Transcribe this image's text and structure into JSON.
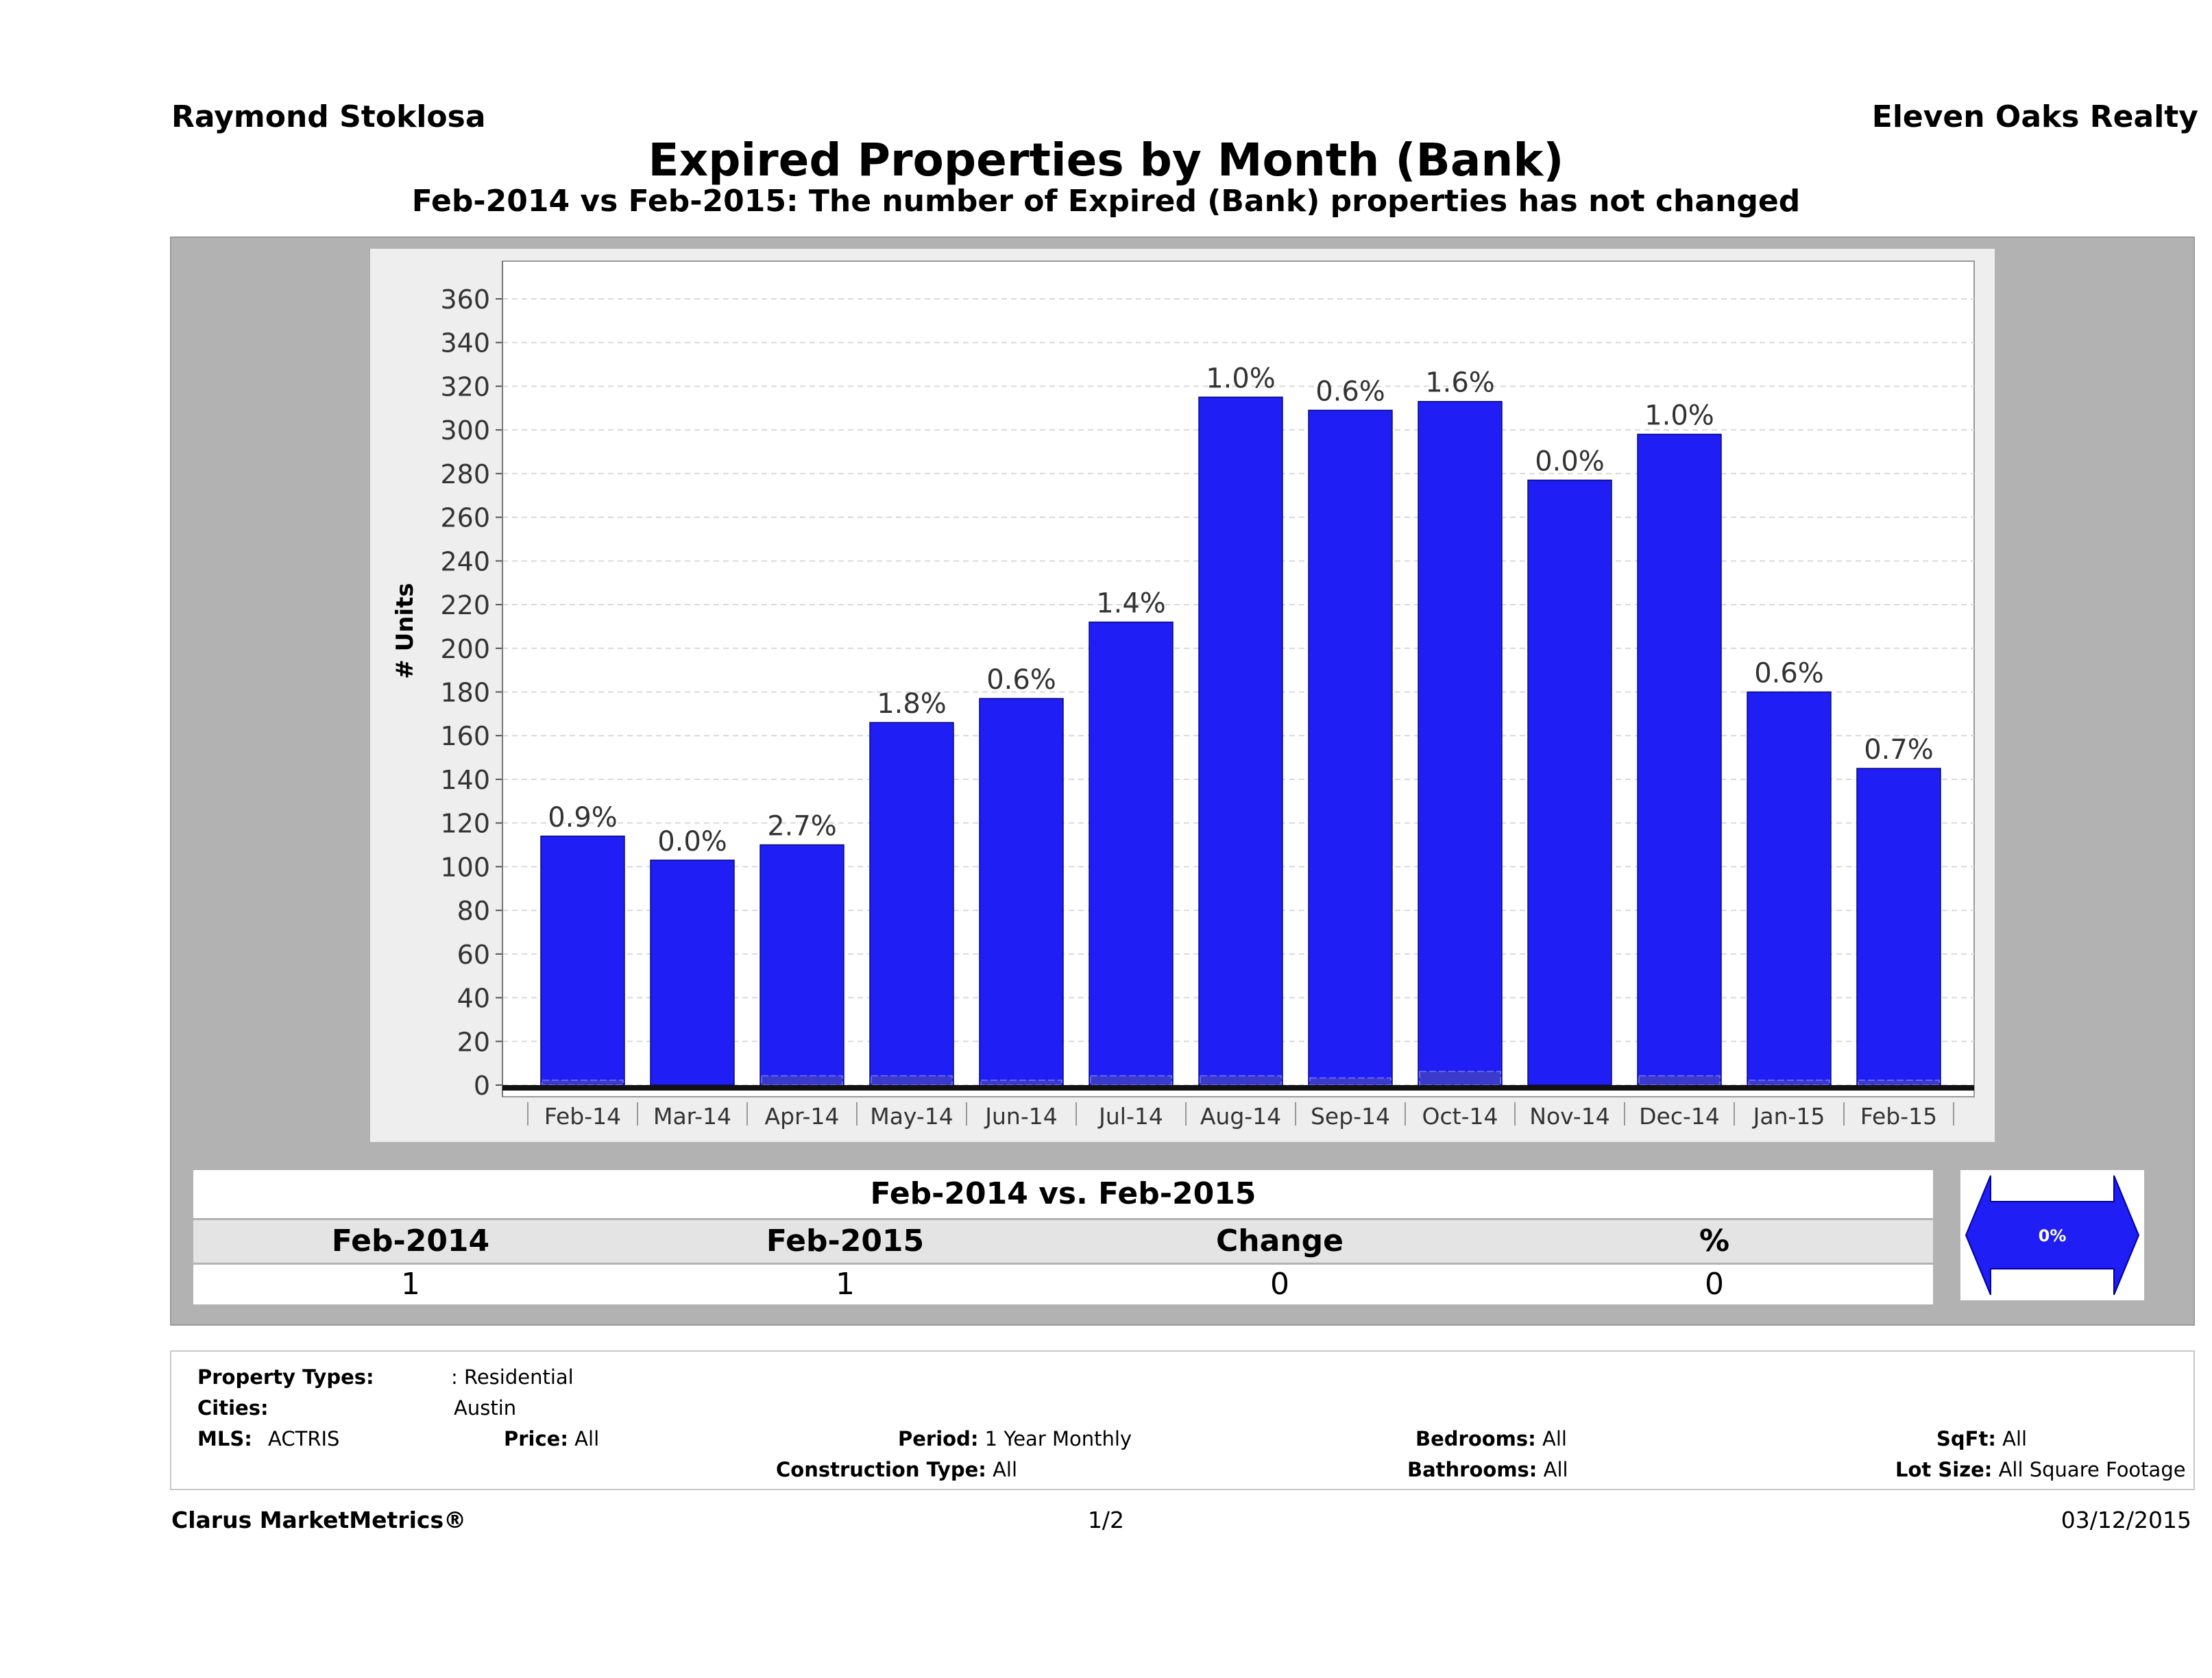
{
  "header": {
    "agent": "Raymond Stoklosa",
    "brokerage": "Eleven Oaks Realty",
    "title": "Expired Properties by Month (Bank)",
    "subtitle": "Feb-2014 vs Feb-2015: The number of Expired (Bank)  properties has not changed"
  },
  "chart_data": {
    "type": "bar",
    "ylabel": "# Units",
    "xlabel": "",
    "ylim": [
      0,
      360
    ],
    "yticks": [
      0,
      20,
      40,
      60,
      80,
      100,
      120,
      140,
      160,
      180,
      200,
      220,
      240,
      260,
      280,
      300,
      320,
      340,
      360
    ],
    "grid": true,
    "categories": [
      "Feb-14",
      "Mar-14",
      "Apr-14",
      "May-14",
      "Jun-14",
      "Jul-14",
      "Aug-14",
      "Sep-14",
      "Oct-14",
      "Nov-14",
      "Dec-14",
      "Jan-15",
      "Feb-15"
    ],
    "values": [
      114,
      103,
      110,
      166,
      177,
      212,
      315,
      309,
      313,
      277,
      298,
      180,
      145
    ],
    "bank_values": [
      1,
      0,
      3,
      3,
      1,
      3,
      3,
      2,
      5,
      0,
      3,
      1,
      1
    ],
    "data_labels": [
      "0.9%",
      "0.0%",
      "2.7%",
      "1.8%",
      "0.6%",
      "1.4%",
      "1.0%",
      "0.6%",
      "1.6%",
      "0.0%",
      "1.0%",
      "0.6%",
      "0.7%"
    ],
    "bar_color": "#1e1ef5"
  },
  "comparison": {
    "heading": "Feb-2014 vs. Feb-2015",
    "columns": [
      "Feb-2014",
      "Feb-2015",
      "Change",
      "%"
    ],
    "values": [
      "1",
      "1",
      "0",
      "0"
    ],
    "indicator_label": "0%",
    "indicator_color": "#1e1ef5"
  },
  "filters": {
    "property_types_label": "Property Types:",
    "property_types_value": ": Residential",
    "cities_label": "Cities:",
    "cities_value": "Austin",
    "mls_label": "MLS:",
    "mls_value": "ACTRIS",
    "price_label": "Price:",
    "price_value": "All",
    "period_label": "Period:",
    "period_value": "1 Year Monthly",
    "construction_label": "Construction Type:",
    "construction_value": "All",
    "bedrooms_label": "Bedrooms:",
    "bedrooms_value": "All",
    "bathrooms_label": "Bathrooms:",
    "bathrooms_value": "All",
    "sqft_label": "SqFt:",
    "sqft_value": "All",
    "lotsize_label": "Lot Size:",
    "lotsize_value": "All Square Footage"
  },
  "footer": {
    "brand": "Clarus MarketMetrics®",
    "page": "1/2",
    "date": "03/12/2015"
  }
}
